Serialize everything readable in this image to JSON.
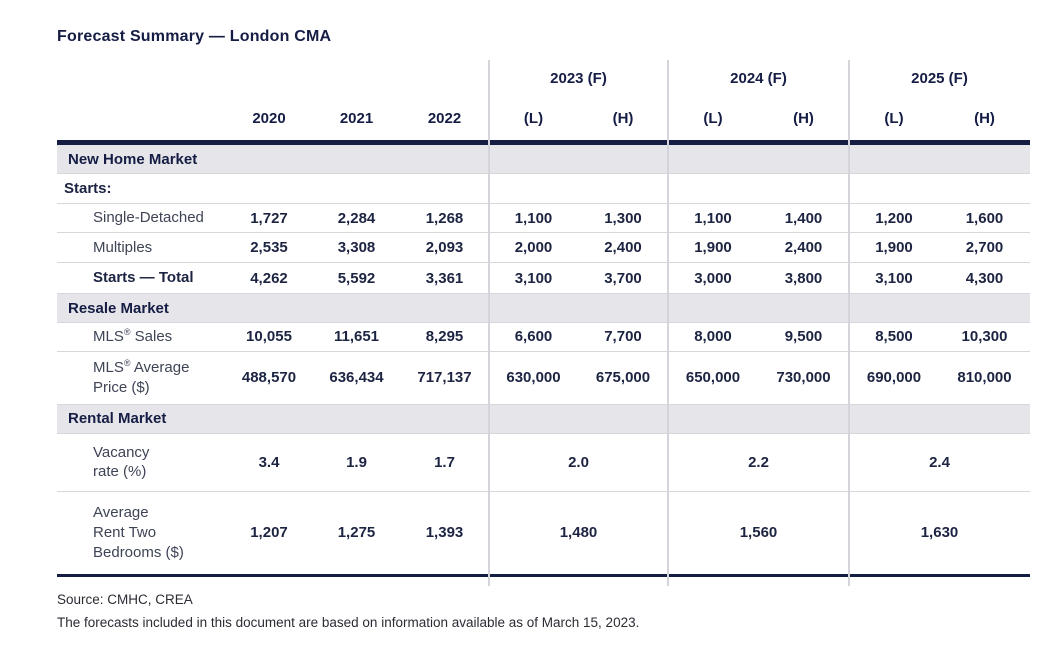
{
  "title": "Forecast Summary — London CMA",
  "colors": {
    "navy": "#151d45",
    "section_band": "#e6e6ea",
    "row_line": "#d6d6db",
    "number_text": "#1c2442",
    "label_text": "#3e4455"
  },
  "header": {
    "historical_years": [
      "2020",
      "2021",
      "2022"
    ],
    "forecast_groups": [
      {
        "label": "2023 (F)",
        "low": "(L)",
        "high": "(H)"
      },
      {
        "label": "2024 (F)",
        "low": "(L)",
        "high": "(H)"
      },
      {
        "label": "2025 (F)",
        "low": "(L)",
        "high": "(H)"
      }
    ]
  },
  "table": {
    "rows": [
      {
        "type": "band",
        "label": "New Home Market"
      },
      {
        "type": "subhead",
        "label": "Starts:"
      },
      {
        "type": "data",
        "label": "Single-Detached",
        "values": [
          "1,727",
          "2,284",
          "1,268",
          "1,100",
          "1,300",
          "1,100",
          "1,400",
          "1,200",
          "1,600"
        ]
      },
      {
        "type": "data",
        "label": "Multiples",
        "values": [
          "2,535",
          "3,308",
          "2,093",
          "2,000",
          "2,400",
          "1,900",
          "2,400",
          "1,900",
          "2,700"
        ]
      },
      {
        "type": "data",
        "label": "Starts — Total",
        "values": [
          "4,262",
          "5,592",
          "3,361",
          "3,100",
          "3,700",
          "3,000",
          "3,800",
          "3,100",
          "4,300"
        ]
      },
      {
        "type": "band",
        "label": "Resale Market"
      },
      {
        "type": "data",
        "label": "MLS® Sales",
        "values": [
          "10,055",
          "11,651",
          "8,295",
          "6,600",
          "7,700",
          "8,000",
          "9,500",
          "8,500",
          "10,300"
        ]
      },
      {
        "type": "data",
        "label": "MLS® Average\nPrice ($)",
        "values": [
          "488,570",
          "636,434",
          "717,137",
          "630,000",
          "675,000",
          "650,000",
          "730,000",
          "690,000",
          "810,000"
        ]
      },
      {
        "type": "band",
        "label": "Rental Market"
      },
      {
        "type": "span",
        "label": "Vacancy\nrate (%)",
        "values": [
          "3.4",
          "1.9",
          "1.7",
          "2.0",
          "2.2",
          "2.4"
        ]
      },
      {
        "type": "span",
        "label": "Average\nRent Two\nBedrooms ($)",
        "values": [
          "1,207",
          "1,275",
          "1,393",
          "1,480",
          "1,560",
          "1,630"
        ]
      }
    ]
  },
  "footer": {
    "source": "Source: CMHC, CREA",
    "note": "The forecasts included in this document are based on information available as of March 15, 2023."
  }
}
